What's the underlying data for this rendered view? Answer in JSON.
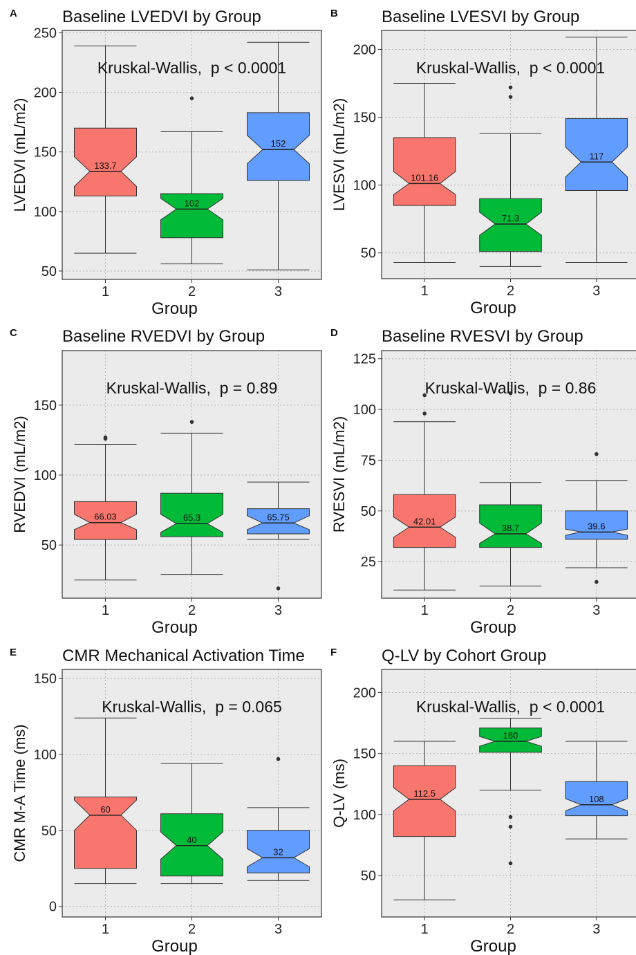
{
  "colors": {
    "group1": "#F8766D",
    "group2": "#00BA38",
    "group3": "#619CFF",
    "panel": "#EBEBEB",
    "grid": "#B3B3B3",
    "text": "#222222"
  },
  "chart_data": [
    {
      "panel_label": "A",
      "type": "boxplot",
      "title": "Baseline LVEDVI by Group",
      "xlabel": "Group",
      "ylabel": "LVEDVI (mL/m2)",
      "categories": [
        "1",
        "2",
        "3"
      ],
      "ylim": [
        43,
        252
      ],
      "yticks": [
        50,
        100,
        150,
        200,
        250
      ],
      "annotation": "Kruskal-Wallis,  p < 0.0001",
      "boxes": [
        {
          "group": "1",
          "whisker_low": 65,
          "q1": 113,
          "median": 133.7,
          "q3": 170,
          "whisker_high": 239,
          "median_label": "133.7",
          "notch": [
            121,
            146
          ],
          "outliers": []
        },
        {
          "group": "2",
          "whisker_low": 56,
          "q1": 78,
          "median": 102,
          "q3": 115,
          "whisker_high": 167,
          "median_label": "102",
          "notch": [
            93,
            111
          ],
          "outliers": [
            195
          ]
        },
        {
          "group": "3",
          "whisker_low": 51,
          "q1": 126,
          "median": 152,
          "q3": 183,
          "whisker_high": 242,
          "median_label": "152",
          "notch": [
            140,
            164
          ],
          "outliers": []
        }
      ]
    },
    {
      "panel_label": "B",
      "type": "boxplot",
      "title": "Baseline LVESVI by Group",
      "xlabel": "Group",
      "ylabel": "LVESVI (mL/m2)",
      "categories": [
        "1",
        "2",
        "3"
      ],
      "ylim": [
        31,
        214
      ],
      "yticks": [
        50,
        100,
        150,
        200
      ],
      "annotation": "Kruskal-Wallis,  p < 0.0001",
      "boxes": [
        {
          "group": "1",
          "whisker_low": 43,
          "q1": 85,
          "median": 101.16,
          "q3": 135,
          "whisker_high": 175,
          "median_label": "101.16",
          "notch": [
            93,
            110
          ],
          "outliers": []
        },
        {
          "group": "2",
          "whisker_low": 40,
          "q1": 51,
          "median": 71.3,
          "q3": 90,
          "whisker_high": 138,
          "median_label": "71.3",
          "notch": [
            63,
            80
          ],
          "outliers": [
            165,
            172
          ]
        },
        {
          "group": "3",
          "whisker_low": 43,
          "q1": 96,
          "median": 117,
          "q3": 149,
          "whisker_high": 209,
          "median_label": "117",
          "notch": [
            106,
            128
          ],
          "outliers": []
        }
      ]
    },
    {
      "panel_label": "C",
      "type": "boxplot",
      "title": "Baseline RVEDVI by Group",
      "xlabel": "Group",
      "ylabel": "RVEDVI (mL/m2)",
      "categories": [
        "1",
        "2",
        "3"
      ],
      "ylim": [
        12,
        189
      ],
      "yticks": [
        50,
        100,
        150
      ],
      "annotation": "Kruskal-Wallis,  p = 0.89",
      "boxes": [
        {
          "group": "1",
          "whisker_low": 25,
          "q1": 54,
          "median": 66.03,
          "q3": 81,
          "whisker_high": 122,
          "median_label": "66.03",
          "notch": [
            61,
            72
          ],
          "outliers": [
            126,
            127
          ]
        },
        {
          "group": "2",
          "whisker_low": 29,
          "q1": 56,
          "median": 65.3,
          "q3": 87,
          "whisker_high": 130,
          "median_label": "65.3",
          "notch": [
            59,
            72
          ],
          "outliers": [
            138
          ]
        },
        {
          "group": "3",
          "whisker_low": 54,
          "q1": 58,
          "median": 65.75,
          "q3": 76,
          "whisker_high": 95,
          "median_label": "65.75",
          "notch": [
            61,
            71
          ],
          "outliers": [
            19
          ]
        }
      ]
    },
    {
      "panel_label": "D",
      "type": "boxplot",
      "title": "Baseline RVESVI by Group",
      "xlabel": "Group",
      "ylabel": "RVESVI (mL/m2)",
      "categories": [
        "1",
        "2",
        "3"
      ],
      "ylim": [
        7,
        129
      ],
      "yticks": [
        25,
        50,
        75,
        100,
        125
      ],
      "annotation": "Kruskal-Wallis,  p = 0.86",
      "boxes": [
        {
          "group": "1",
          "whisker_low": 11,
          "q1": 32,
          "median": 42.01,
          "q3": 58,
          "whisker_high": 94,
          "median_label": "42.01",
          "notch": [
            37,
            47
          ],
          "outliers": [
            98,
            107
          ]
        },
        {
          "group": "2",
          "whisker_low": 13,
          "q1": 32,
          "median": 38.7,
          "q3": 53,
          "whisker_high": 64,
          "median_label": "38.7",
          "notch": [
            34,
            44
          ],
          "outliers": [
            108
          ]
        },
        {
          "group": "3",
          "whisker_low": 22,
          "q1": 36,
          "median": 39.6,
          "q3": 50,
          "whisker_high": 65,
          "median_label": "39.6",
          "notch": [
            38,
            41
          ],
          "outliers": [
            78,
            15
          ]
        }
      ]
    },
    {
      "panel_label": "E",
      "type": "boxplot",
      "title": "CMR Mechanical Activation Time",
      "xlabel": "Group",
      "ylabel": "CMR M-A Time (ms)",
      "categories": [
        "1",
        "2",
        "3"
      ],
      "ylim": [
        -7,
        156
      ],
      "yticks": [
        0,
        50,
        100,
        150
      ],
      "annotation": "Kruskal-Wallis,  p = 0.065",
      "boxes": [
        {
          "group": "1",
          "whisker_low": 15,
          "q1": 25,
          "median": 60,
          "q3": 72,
          "whisker_high": 124,
          "median_label": "60",
          "notch": [
            50,
            70
          ],
          "outliers": []
        },
        {
          "group": "2",
          "whisker_low": 15,
          "q1": 20,
          "median": 40,
          "q3": 61,
          "whisker_high": 94,
          "median_label": "40",
          "notch": [
            31,
            49
          ],
          "outliers": []
        },
        {
          "group": "3",
          "whisker_low": 17,
          "q1": 22,
          "median": 32,
          "q3": 50,
          "whisker_high": 65,
          "median_label": "32",
          "notch": [
            26,
            38
          ],
          "outliers": [
            97
          ]
        }
      ]
    },
    {
      "panel_label": "F",
      "type": "boxplot",
      "title": "Q-LV by Cohort Group",
      "xlabel": "Group",
      "ylabel": "Q-LV (ms)",
      "categories": [
        "1",
        "2",
        "3"
      ],
      "ylim": [
        16,
        219
      ],
      "yticks": [
        50,
        100,
        150,
        200
      ],
      "annotation": "Kruskal-Wallis,  p < 0.0001",
      "boxes": [
        {
          "group": "1",
          "whisker_low": 30,
          "q1": 82,
          "median": 112.5,
          "q3": 140,
          "whisker_high": 160,
          "median_label": "112.5",
          "notch": [
            103,
            122
          ],
          "outliers": []
        },
        {
          "group": "2",
          "whisker_low": 120,
          "q1": 151,
          "median": 160,
          "q3": 171,
          "whisker_high": 179,
          "median_label": "160",
          "notch": [
            156,
            164
          ],
          "outliers": [
            98,
            90,
            60
          ]
        },
        {
          "group": "3",
          "whisker_low": 80,
          "q1": 99,
          "median": 108,
          "q3": 127,
          "whisker_high": 160,
          "median_label": "108",
          "notch": [
            103,
            113
          ],
          "outliers": []
        }
      ]
    }
  ]
}
